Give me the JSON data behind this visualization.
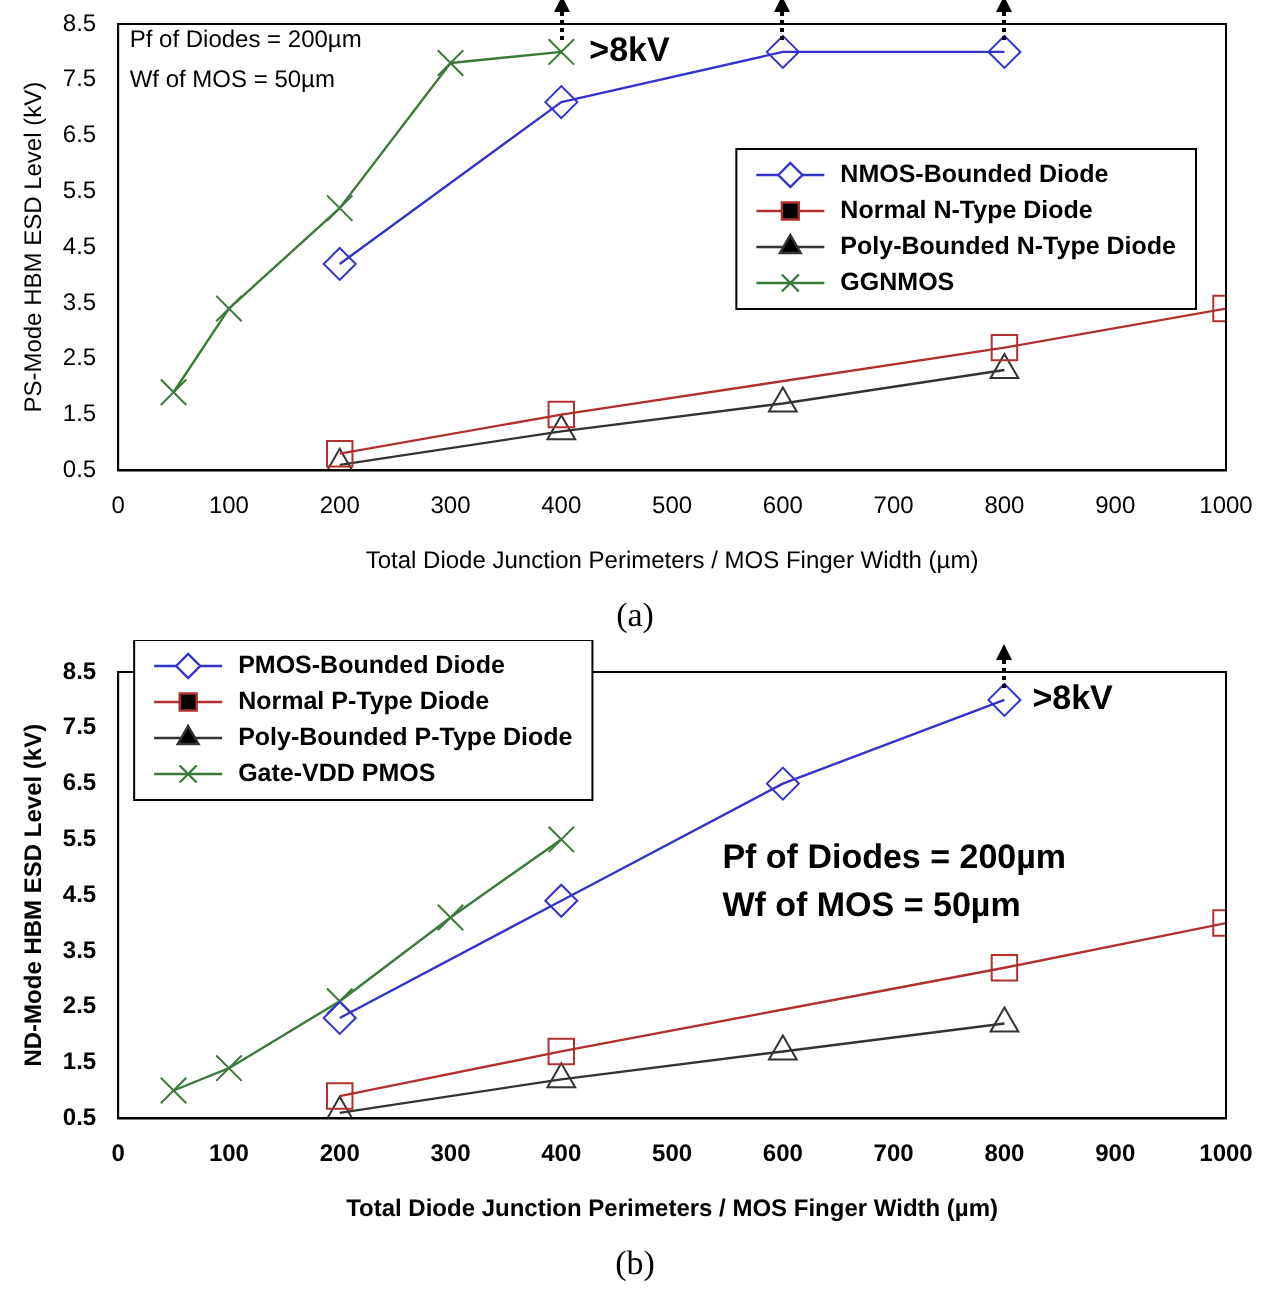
{
  "chart_data": [
    {
      "type": "line",
      "xlabel": "Total Diode Junction Perimeters / MOS Finger Width (µm)",
      "ylabel": "PS-Mode HBM ESD Level (kV)",
      "xlim": [
        0,
        1000
      ],
      "xticks": [
        0,
        100,
        200,
        300,
        400,
        500,
        600,
        700,
        800,
        900,
        1000
      ],
      "ylim": [
        0.5,
        8.5
      ],
      "yticks": [
        0.5,
        1.5,
        2.5,
        3.5,
        4.5,
        5.5,
        6.5,
        7.5,
        8.5
      ],
      "grid": false,
      "legend": "right",
      "series": [
        {
          "name": "NMOS-Bounded Diode",
          "color": "#3333cc",
          "marker": "diamond",
          "x": [
            200,
            400,
            600,
            800
          ],
          "values": [
            4.2,
            7.1,
            8.0,
            8.0
          ]
        },
        {
          "name": "Normal N-Type Diode",
          "color": "#b03030",
          "marker": "square",
          "x": [
            200,
            400,
            800,
            1000
          ],
          "values": [
            0.8,
            1.5,
            2.7,
            3.4
          ]
        },
        {
          "name": "Poly-Bounded N-Type Diode",
          "color": "#333333",
          "marker": "triangle",
          "x": [
            200,
            400,
            600,
            800
          ],
          "values": [
            0.6,
            1.2,
            1.7,
            2.3
          ]
        },
        {
          "name": "GGNMOS",
          "color": "#3a7a3a",
          "marker": "cross",
          "x": [
            50,
            100,
            200,
            300,
            400
          ],
          "values": [
            1.9,
            3.4,
            5.2,
            7.8,
            8.0
          ]
        }
      ],
      "annotations": [
        "Pf of Diodes = 200µm",
        "Wf of MOS = 50µm",
        {
          "text": ">8kV",
          "x": 400,
          "y": 8.0
        },
        "(a)"
      ]
    },
    {
      "type": "line",
      "xlabel": "Total Diode Junction Perimeters / MOS Finger Width (µm)",
      "ylabel": "ND-Mode HBM ESD Level (kV)",
      "xlim": [
        0,
        1000
      ],
      "xticks": [
        0,
        100,
        200,
        300,
        400,
        500,
        600,
        700,
        800,
        900,
        1000
      ],
      "ylim": [
        0.5,
        8.5
      ],
      "yticks": [
        0.5,
        1.5,
        2.5,
        3.5,
        4.5,
        5.5,
        6.5,
        7.5,
        8.5
      ],
      "grid": false,
      "legend": "top left",
      "series": [
        {
          "name": "PMOS-Bounded Diode",
          "color": "#3333cc",
          "marker": "diamond",
          "x": [
            200,
            400,
            600,
            800
          ],
          "values": [
            2.3,
            4.4,
            6.5,
            8.0
          ]
        },
        {
          "name": "Normal P-Type Diode",
          "color": "#b03030",
          "marker": "square",
          "x": [
            200,
            400,
            800,
            1000
          ],
          "values": [
            0.9,
            1.7,
            3.2,
            4.0
          ]
        },
        {
          "name": "Poly-Bounded P-Type Diode",
          "color": "#333333",
          "marker": "triangle",
          "x": [
            200,
            400,
            600,
            800
          ],
          "values": [
            0.6,
            1.2,
            1.7,
            2.2
          ]
        },
        {
          "name": "Gate-VDD PMOS",
          "color": "#3a7a3a",
          "marker": "cross",
          "x": [
            50,
            100,
            200,
            300,
            400
          ],
          "values": [
            1.0,
            1.4,
            2.6,
            4.1,
            5.5
          ]
        }
      ],
      "annotations": [
        "Pf of Diodes = 200µm",
        "Wf of MOS = 50µm",
        {
          "text": ">8kV",
          "x": 800,
          "y": 8.0
        },
        "(b)"
      ]
    }
  ]
}
